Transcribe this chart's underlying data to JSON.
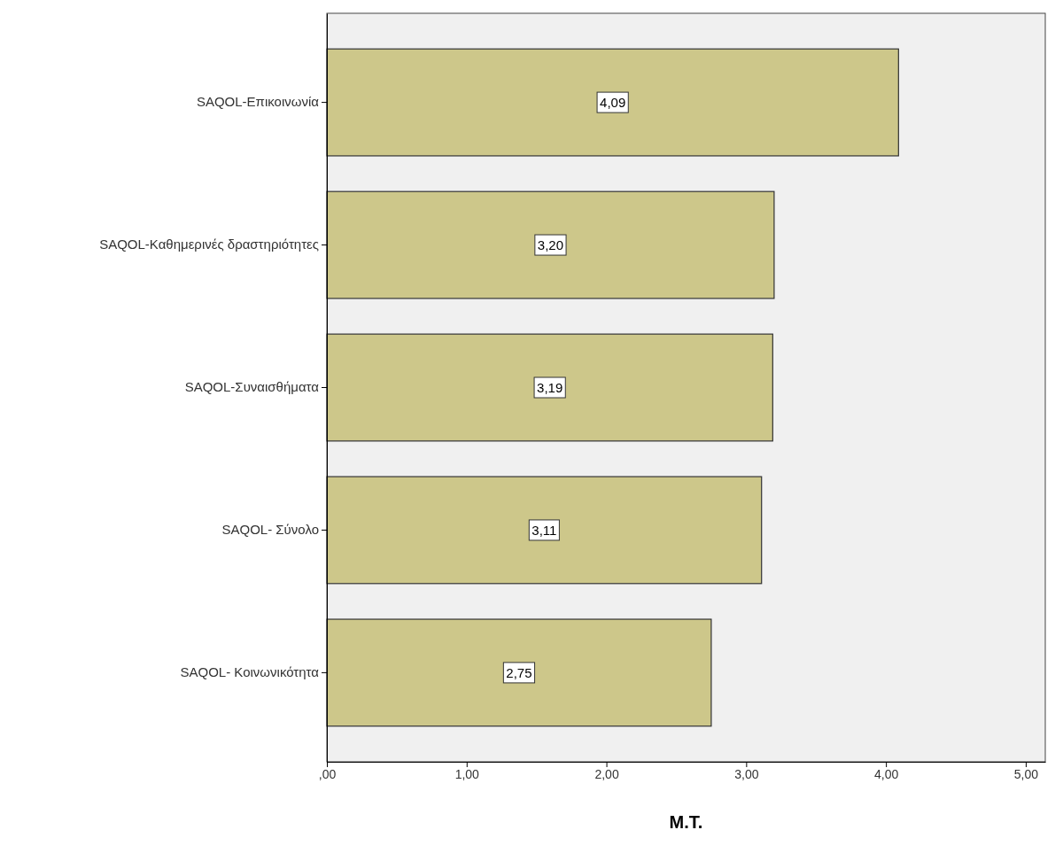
{
  "chart_data": {
    "type": "bar",
    "orientation": "horizontal",
    "xlabel": "Μ.Τ.",
    "categories": [
      "SAQOL-Επικοινωνία",
      "SAQOL-Καθημερινές δραστηριότητες",
      "SAQOL-Συναισθήματα",
      "SAQOL- Σύνολο",
      "SAQOL- Κοινωνικότητα"
    ],
    "values": [
      4.09,
      3.2,
      3.19,
      3.11,
      2.75
    ],
    "value_labels": [
      "4,09",
      "3,20",
      "3,19",
      "3,11",
      "2,75"
    ],
    "color": "#cdc78a",
    "xlim": [
      0,
      5.14
    ],
    "xticks": [
      {
        "value": 0,
        "label": ",00"
      },
      {
        "value": 1,
        "label": "1,00"
      },
      {
        "value": 2,
        "label": "2,00"
      },
      {
        "value": 3,
        "label": "3,00"
      },
      {
        "value": 4,
        "label": "4,00"
      },
      {
        "value": 5,
        "label": "5,00"
      }
    ],
    "grid": false
  }
}
